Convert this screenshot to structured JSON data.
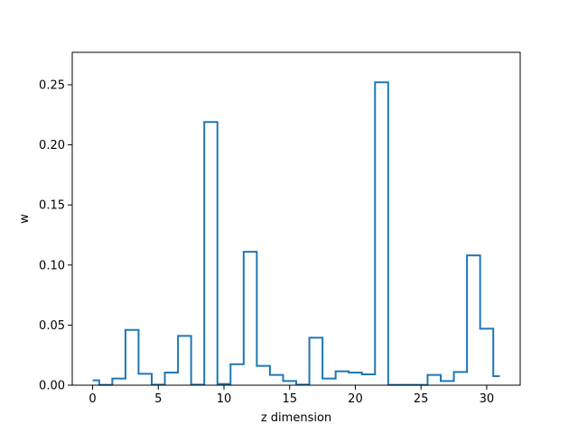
{
  "chart_data": {
    "type": "line",
    "drawstyle": "steps-mid",
    "xlabel": "z dimension",
    "ylabel": "w",
    "xlim": [
      -1.55,
      32.55
    ],
    "ylim": [
      0,
      0.277
    ],
    "xticks": [
      0,
      5,
      10,
      15,
      20,
      25,
      30
    ],
    "xtick_labels": [
      "0",
      "5",
      "10",
      "15",
      "20",
      "25",
      "30"
    ],
    "yticks": [
      0.0,
      0.05,
      0.1,
      0.15,
      0.2,
      0.25
    ],
    "ytick_labels": [
      "0.00",
      "0.05",
      "0.10",
      "0.15",
      "0.20",
      "0.25"
    ],
    "grid": false,
    "color": "#1f77b4",
    "x": [
      0,
      1,
      2,
      3,
      4,
      5,
      6,
      7,
      8,
      9,
      10,
      11,
      12,
      13,
      14,
      15,
      16,
      17,
      18,
      19,
      20,
      21,
      22,
      23,
      24,
      25,
      26,
      27,
      28,
      29,
      30,
      31
    ],
    "values": [
      0.004,
      0.0003,
      0.0055,
      0.046,
      0.0095,
      0.0005,
      0.0105,
      0.041,
      0.0005,
      0.219,
      0.001,
      0.0175,
      0.111,
      0.016,
      0.0085,
      0.0035,
      0.0005,
      0.0395,
      0.0055,
      0.0115,
      0.0105,
      0.009,
      0.252,
      0.0003,
      0.0003,
      0.0003,
      0.0085,
      0.0035,
      0.011,
      0.108,
      0.047,
      0.0075
    ]
  }
}
